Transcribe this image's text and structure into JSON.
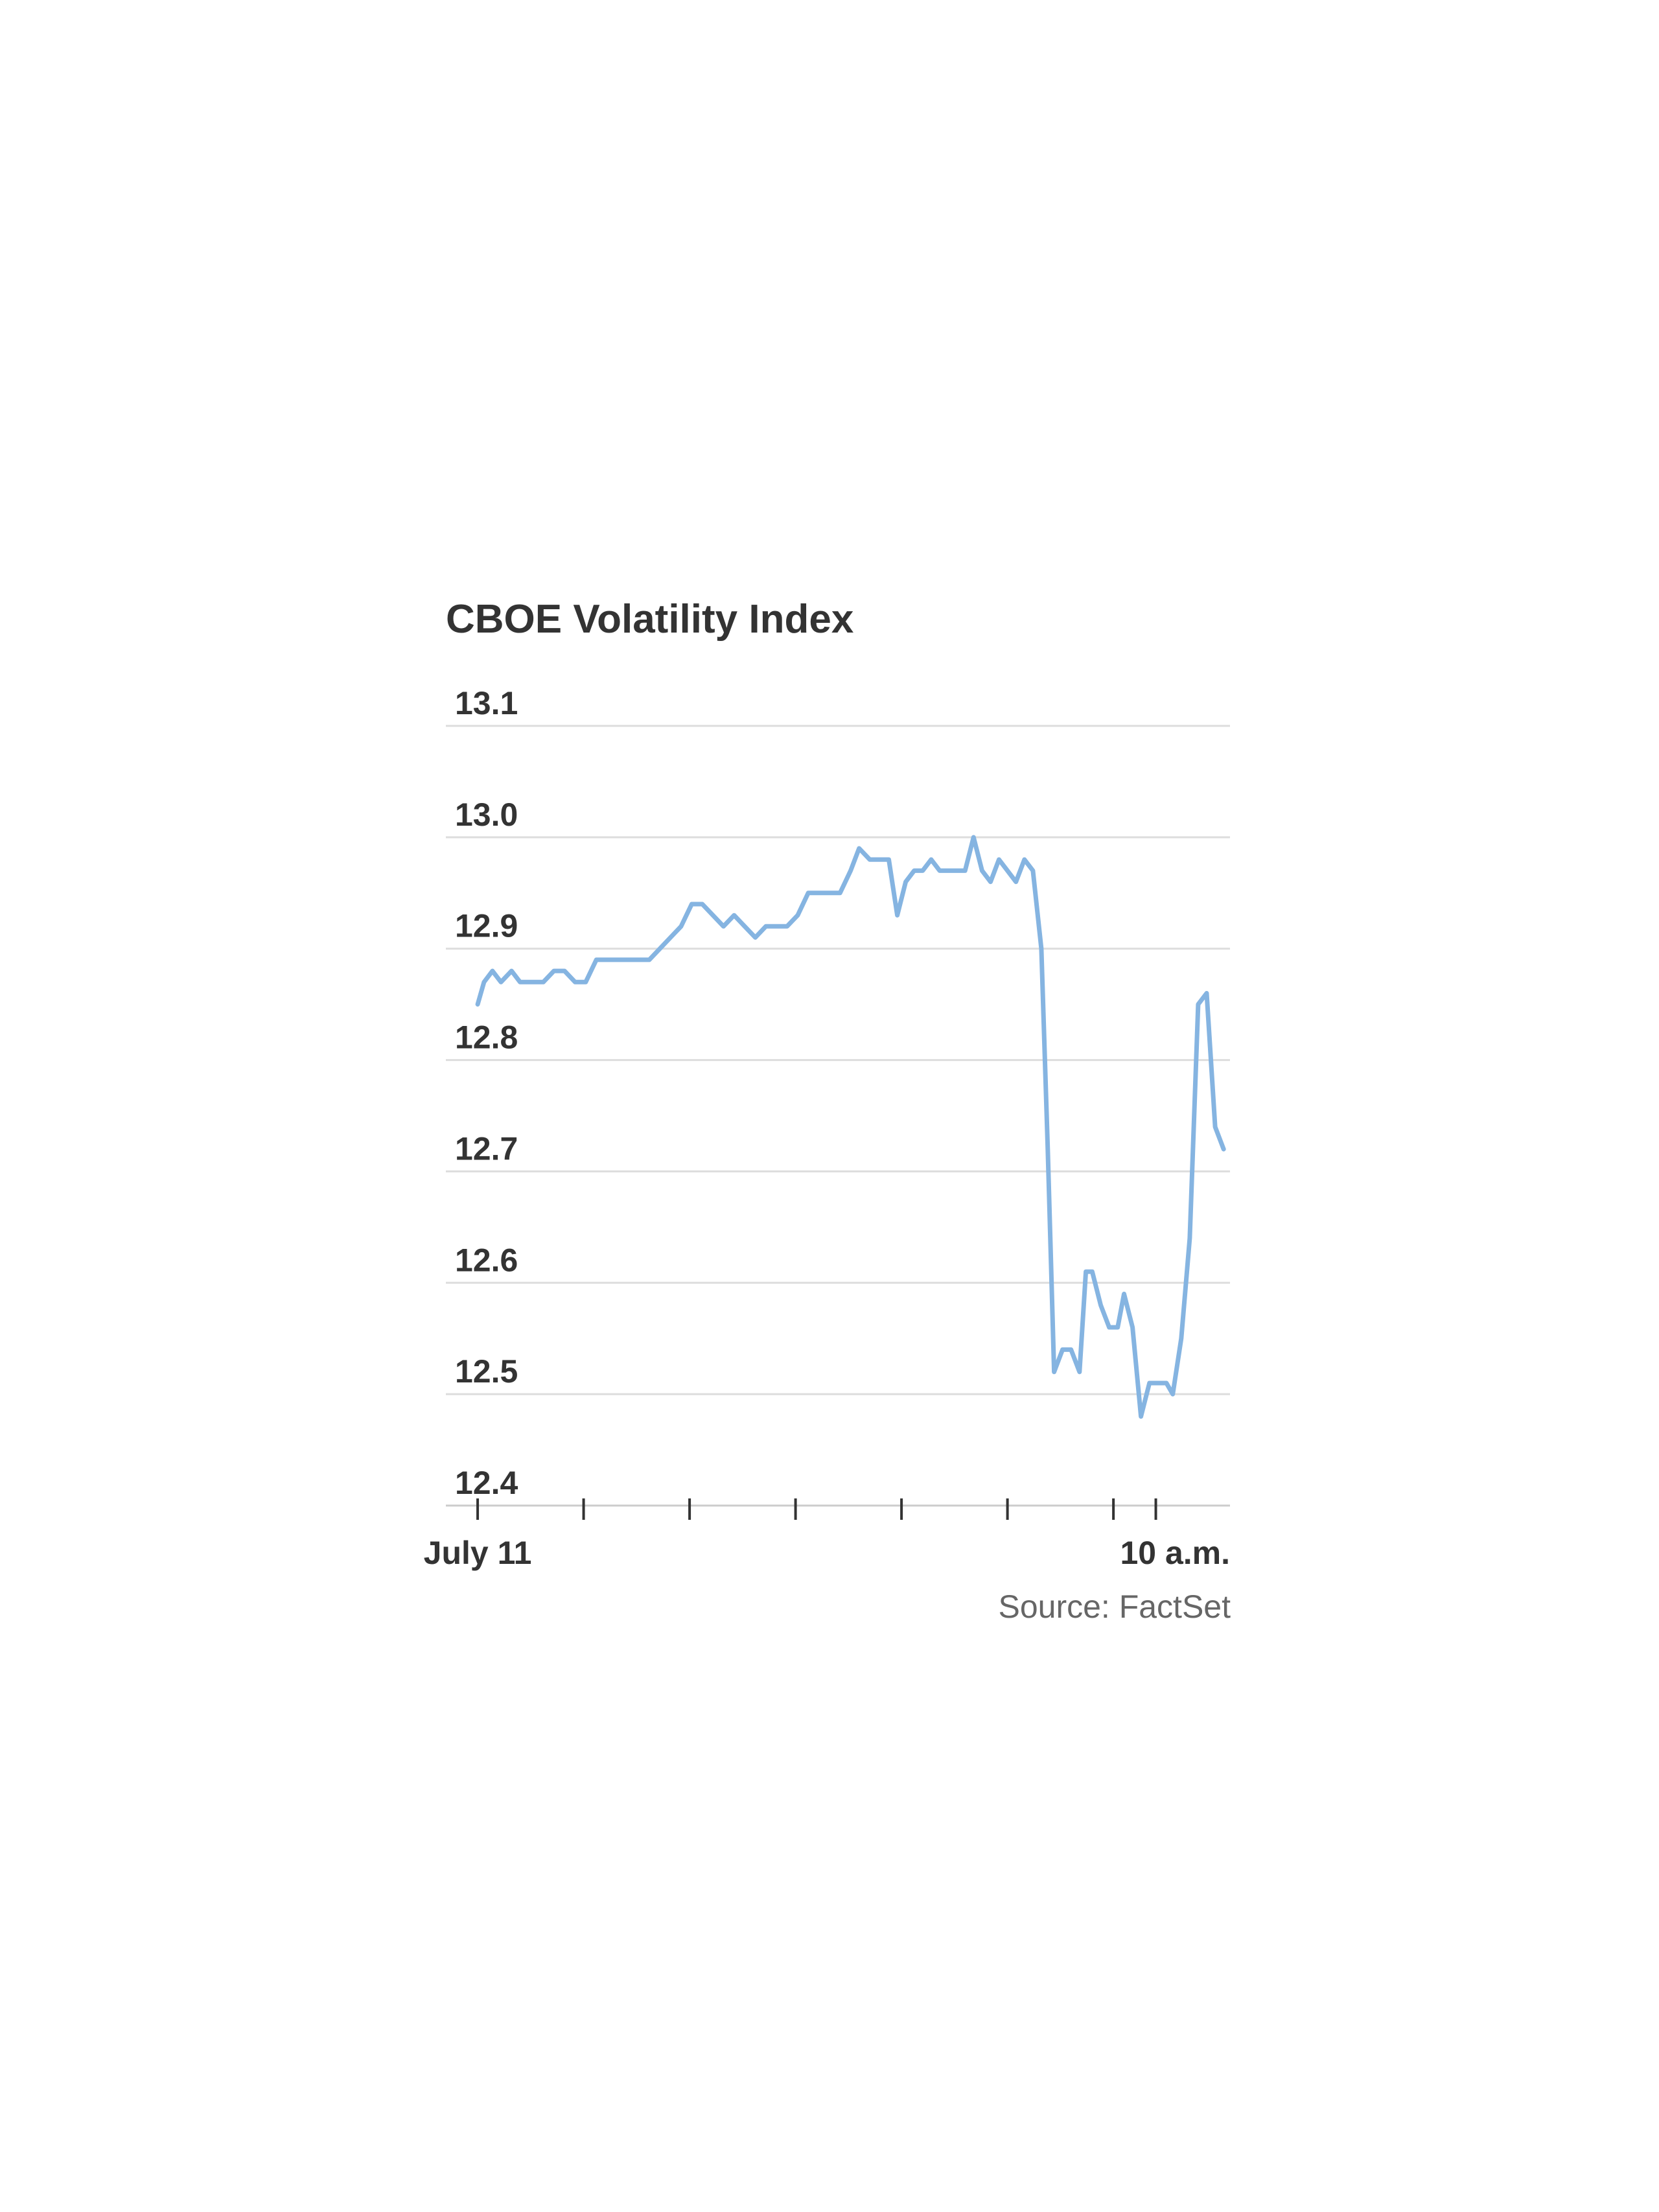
{
  "chart_data": {
    "type": "line",
    "title": "CBOE Volatility Index",
    "source": "Source: FactSet",
    "xlabel": "",
    "ylabel": "",
    "ylim": [
      12.4,
      13.1
    ],
    "yticks": [
      "13.1",
      "13.0",
      "12.9",
      "12.8",
      "12.7",
      "12.6",
      "12.5",
      "12.4"
    ],
    "ytick_values": [
      13.1,
      13.0,
      12.9,
      12.8,
      12.7,
      12.6,
      12.5,
      12.4
    ],
    "x_unit": "minutes since 9:30 a.m. ET, July 11",
    "xlim": [
      -1.5,
      35.5
    ],
    "xtick_values": [
      0,
      5,
      10,
      15,
      20,
      25,
      30,
      32
    ],
    "xtick_labels": [
      "July 11",
      "",
      "",
      "",
      "",
      "",
      "",
      "10 a.m."
    ],
    "grid": true,
    "line_color": "#85b4e1",
    "grid_color": "#dddddd",
    "series": [
      {
        "values": [
          [
            0.0,
            12.85
          ],
          [
            0.3,
            12.87
          ],
          [
            0.7,
            12.88
          ],
          [
            1.1,
            12.87
          ],
          [
            1.6,
            12.88
          ],
          [
            2.0,
            12.87
          ],
          [
            2.6,
            12.87
          ],
          [
            3.1,
            12.87
          ],
          [
            3.6,
            12.88
          ],
          [
            4.1,
            12.88
          ],
          [
            4.6,
            12.87
          ],
          [
            5.1,
            12.87
          ],
          [
            5.6,
            12.89
          ],
          [
            6.1,
            12.89
          ],
          [
            6.6,
            12.89
          ],
          [
            7.1,
            12.89
          ],
          [
            7.6,
            12.89
          ],
          [
            8.1,
            12.89
          ],
          [
            8.6,
            12.9
          ],
          [
            9.1,
            12.91
          ],
          [
            9.6,
            12.92
          ],
          [
            10.1,
            12.94
          ],
          [
            10.6,
            12.94
          ],
          [
            11.1,
            12.93
          ],
          [
            11.6,
            12.92
          ],
          [
            12.1,
            12.93
          ],
          [
            12.6,
            12.92
          ],
          [
            13.1,
            12.91
          ],
          [
            13.6,
            12.92
          ],
          [
            14.1,
            12.92
          ],
          [
            14.6,
            12.92
          ],
          [
            15.1,
            12.93
          ],
          [
            15.6,
            12.95
          ],
          [
            16.1,
            12.95
          ],
          [
            16.6,
            12.95
          ],
          [
            17.1,
            12.95
          ],
          [
            17.6,
            12.97
          ],
          [
            18.0,
            12.99
          ],
          [
            18.5,
            12.98
          ],
          [
            19.0,
            12.98
          ],
          [
            19.4,
            12.98
          ],
          [
            19.8,
            12.93
          ],
          [
            20.2,
            12.96
          ],
          [
            20.6,
            12.97
          ],
          [
            21.0,
            12.97
          ],
          [
            21.4,
            12.98
          ],
          [
            21.8,
            12.97
          ],
          [
            22.2,
            12.97
          ],
          [
            22.6,
            12.97
          ],
          [
            23.0,
            12.97
          ],
          [
            23.4,
            13.0
          ],
          [
            23.8,
            12.97
          ],
          [
            24.2,
            12.96
          ],
          [
            24.6,
            12.98
          ],
          [
            25.0,
            12.97
          ],
          [
            25.4,
            12.96
          ],
          [
            25.8,
            12.98
          ],
          [
            26.2,
            12.97
          ],
          [
            26.6,
            12.9
          ],
          [
            26.9,
            12.72
          ],
          [
            27.2,
            12.52
          ],
          [
            27.6,
            12.54
          ],
          [
            28.0,
            12.54
          ],
          [
            28.4,
            12.52
          ],
          [
            28.7,
            12.61
          ],
          [
            29.0,
            12.61
          ],
          [
            29.4,
            12.58
          ],
          [
            29.8,
            12.56
          ],
          [
            30.2,
            12.56
          ],
          [
            30.5,
            12.59
          ],
          [
            30.9,
            12.56
          ],
          [
            31.3,
            12.48
          ],
          [
            31.7,
            12.51
          ],
          [
            32.1,
            12.51
          ],
          [
            32.5,
            12.51
          ],
          [
            32.8,
            12.5
          ],
          [
            33.2,
            12.55
          ],
          [
            33.6,
            12.64
          ],
          [
            34.0,
            12.85
          ],
          [
            34.4,
            12.86
          ],
          [
            34.8,
            12.74
          ],
          [
            35.2,
            12.72
          ]
        ]
      }
    ]
  }
}
